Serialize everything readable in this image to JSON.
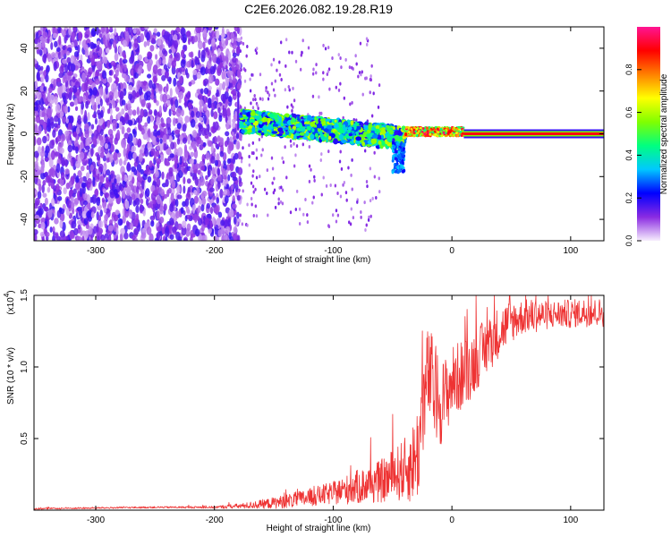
{
  "title": "C2E6.2026.082.19.28.R19",
  "chart_data": [
    {
      "type": "heatmap",
      "xlabel": "Height of straight line (km)",
      "ylabel": "Frequency (Hz)",
      "xlim": [
        -352,
        128
      ],
      "ylim": [
        -50,
        50
      ],
      "xticks": [
        -300,
        -200,
        -100,
        0,
        100
      ],
      "xtick_labels": [
        "-300",
        "-200",
        "-100",
        "0",
        "100"
      ],
      "yticks": [
        -40,
        -20,
        0,
        20,
        40
      ],
      "ytick_labels": [
        "-40",
        "-20",
        "0",
        "20",
        "40"
      ],
      "colorbar": {
        "label": "Normalized spectral amplitude",
        "range": [
          0,
          1
        ],
        "ticks": [
          0.0,
          0.2,
          0.4,
          0.6,
          0.8
        ],
        "tick_labels": [
          "0.0",
          "0.2",
          "0.4",
          "0.6",
          "0.8"
        ],
        "colormap": [
          "#f7eefd",
          "#8a2be2",
          "#0000ff",
          "#00c8ff",
          "#00ff80",
          "#80ff00",
          "#ffff00",
          "#ff8000",
          "#ff0000",
          "#ff1493"
        ]
      },
      "regions": [
        {
          "x": [
            -352,
            -178
          ],
          "y": [
            -50,
            50
          ],
          "intensity": 0.12,
          "description_label": ""
        },
        {
          "x": [
            -178,
            -40
          ],
          "y_center_start": 6,
          "y_center_end": -2,
          "half_width": 5,
          "intensity": 0.35
        },
        {
          "x": [
            -40,
            10
          ],
          "y_center": 1,
          "half_width": 2,
          "intensity": 0.7
        },
        {
          "x": [
            10,
            128
          ],
          "y_center": 0,
          "half_width": 1,
          "intensity": 0.9
        }
      ],
      "grid": false,
      "legend": "none"
    },
    {
      "type": "line",
      "xlabel": "Height of straight line (km)",
      "ylabel": "SNR (10 * v/v)",
      "y_multiplier": "(x10",
      "y_multiplier_exp": "4",
      "y_multiplier_close": ")",
      "xlim": [
        -352,
        128
      ],
      "ylim": [
        0,
        1.5
      ],
      "xticks": [
        -300,
        -200,
        -100,
        0,
        100
      ],
      "xtick_labels": [
        "-300",
        "-200",
        "-100",
        "0",
        "100"
      ],
      "yticks": [
        0.5,
        1.0,
        1.5
      ],
      "ytick_labels": [
        "0.5",
        "1.0",
        "1.5"
      ],
      "series": [
        {
          "color": "#ee3333",
          "x": [
            -352,
            -300,
            -250,
            -200,
            -175,
            -150,
            -125,
            -100,
            -80,
            -60,
            -45,
            -35,
            -28,
            -25,
            -20,
            -15,
            -10,
            -5,
            0,
            10,
            20,
            30,
            40,
            50,
            60,
            70,
            80,
            90,
            100,
            110,
            128
          ],
          "y": [
            0.01,
            0.015,
            0.02,
            0.02,
            0.03,
            0.05,
            0.08,
            0.12,
            0.16,
            0.2,
            0.26,
            0.3,
            0.42,
            0.7,
            0.95,
            0.85,
            0.75,
            0.8,
            0.9,
            0.95,
            1.05,
            1.15,
            1.25,
            1.32,
            1.35,
            1.36,
            1.36,
            1.37,
            1.37,
            1.38,
            1.38
          ],
          "spread": [
            0.005,
            0.006,
            0.006,
            0.008,
            0.02,
            0.04,
            0.06,
            0.08,
            0.12,
            0.15,
            0.2,
            0.25,
            0.35,
            0.35,
            0.35,
            0.35,
            0.3,
            0.28,
            0.25,
            0.25,
            0.22,
            0.2,
            0.18,
            0.15,
            0.12,
            0.12,
            0.1,
            0.1,
            0.1,
            0.1,
            0.1
          ]
        }
      ],
      "grid": false,
      "legend": "none"
    }
  ]
}
